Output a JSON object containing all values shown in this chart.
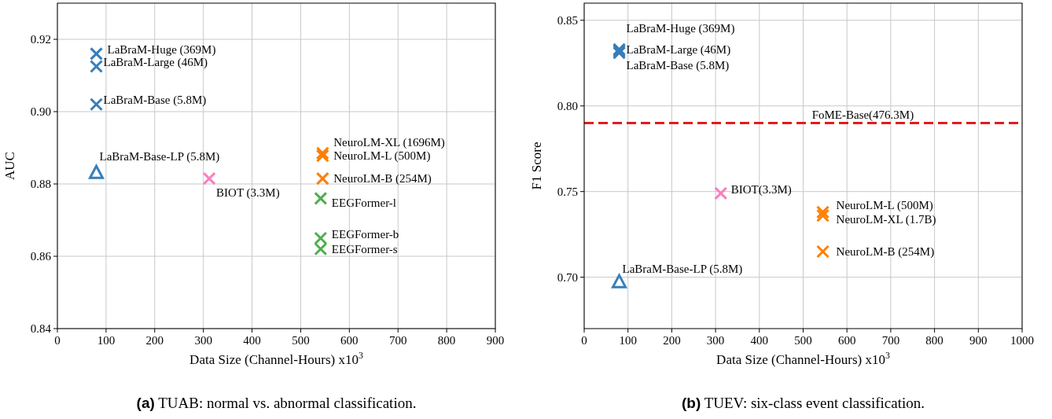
{
  "chart_data": [
    {
      "type": "scatter",
      "title": "(a) TUAB: normal vs. abnormal classification.",
      "xlabel": "Data Size (Channel-Hours) x10$^{3}$",
      "ylabel": "AUC",
      "xlim": [
        0,
        900
      ],
      "xticks": [
        0,
        100,
        200,
        300,
        400,
        500,
        600,
        700,
        800,
        900
      ],
      "ylim": [
        0.84,
        0.93
      ],
      "yticks": [
        0.84,
        0.86,
        0.88,
        {
          "value": 0.9,
          "label": "0.90"
        },
        0.92
      ],
      "grid": true,
      "series": [
        {
          "color": "#377eb8",
          "marker": "cross",
          "x": [
            80,
            80,
            80
          ],
          "values": [
            0.916,
            0.9125,
            0.902
          ]
        },
        {
          "color": "#377eb8",
          "marker": "triangle",
          "x": [
            80
          ],
          "values": [
            0.883
          ]
        },
        {
          "color": "#f781bf",
          "marker": "cross",
          "x": [
            312
          ],
          "values": [
            0.8815
          ]
        },
        {
          "color": "#ff7f00",
          "marker": "cross",
          "x": [
            545,
            545,
            545
          ],
          "values": [
            0.8885,
            0.8878,
            0.8815
          ]
        },
        {
          "color": "#4daf4a",
          "marker": "cross",
          "x": [
            541,
            541,
            541
          ],
          "values": [
            0.876,
            0.865,
            0.862
          ]
        }
      ],
      "annotations": [
        {
          "text": "LaBraM-Huge (369M)",
          "x": 80,
          "y": 0.916
        },
        {
          "text": "LaBraM-Large (46M)",
          "x": 80,
          "y": 0.9125
        },
        {
          "text": "LaBraM-Base (5.8M)",
          "x": 80,
          "y": 0.902
        },
        {
          "text": "LaBraM-Base-LP (5.8M)",
          "x": 80,
          "y": 0.883
        },
        {
          "text": "BIOT (3.3M)",
          "x": 312,
          "y": 0.8815
        },
        {
          "text": "NeuroLM-XL (1696M)",
          "x": 545,
          "y": 0.8885
        },
        {
          "text": "NeuroLM-L (500M)",
          "x": 545,
          "y": 0.8878
        },
        {
          "text": "NeuroLM-B (254M)",
          "x": 545,
          "y": 0.8815
        },
        {
          "text": "EEGFormer-l",
          "x": 541,
          "y": 0.876
        },
        {
          "text": "EEGFormer-b",
          "x": 541,
          "y": 0.865
        },
        {
          "text": "EEGFormer-s",
          "x": 541,
          "y": 0.862
        }
      ]
    },
    {
      "type": "scatter",
      "title": "(b) TUEV: six-class event classification.",
      "xlabel": "Data Size (Channel-Hours) x10$^{3}$",
      "ylabel": "F1 Score",
      "xlim": [
        0,
        1000
      ],
      "xticks": [
        0,
        100,
        200,
        300,
        400,
        500,
        600,
        700,
        800,
        900,
        1000
      ],
      "ylim": [
        0.67,
        0.86
      ],
      "yticks": [
        {
          "value": 0.7,
          "label": "0.70"
        },
        0.75,
        {
          "value": 0.8,
          "label": "0.80"
        },
        0.85
      ],
      "grid": true,
      "series": [
        {
          "color": "#377eb8",
          "marker": "cross",
          "x": [
            80,
            80,
            80
          ],
          "values": [
            0.833,
            0.832,
            0.831
          ]
        },
        {
          "color": "#377eb8",
          "marker": "triangle",
          "x": [
            80
          ],
          "values": [
            0.697
          ]
        },
        {
          "color": "#f781bf",
          "marker": "cross",
          "x": [
            312
          ],
          "values": [
            0.749
          ]
        },
        {
          "color": "#ff7f00",
          "marker": "cross",
          "x": [
            545,
            545,
            545
          ],
          "values": [
            0.738,
            0.736,
            0.715
          ]
        }
      ],
      "ref_lines": [
        {
          "axis": "y",
          "value": 0.79,
          "label": "FoME-Base(476.3M)",
          "color": "#e41a1c",
          "line_style": "dashed"
        }
      ],
      "annotations": [
        {
          "text": "LaBraM-Huge (369M)",
          "x": 80,
          "y": 0.833
        },
        {
          "text": "LaBraM-Large (46M)",
          "x": 80,
          "y": 0.832
        },
        {
          "text": "LaBraM-Base (5.8M)",
          "x": 80,
          "y": 0.831
        },
        {
          "text": "BIOT(3.3M)",
          "x": 312,
          "y": 0.749
        },
        {
          "text": "NeuroLM-L (500M)",
          "x": 545,
          "y": 0.738
        },
        {
          "text": "NeuroLM-XL (1.7B)",
          "x": 545,
          "y": 0.736
        },
        {
          "text": "NeuroLM-B (254M)",
          "x": 545,
          "y": 0.715
        },
        {
          "text": "LaBraM-Base-LP (5.8M)",
          "x": 80,
          "y": 0.697
        }
      ]
    }
  ]
}
